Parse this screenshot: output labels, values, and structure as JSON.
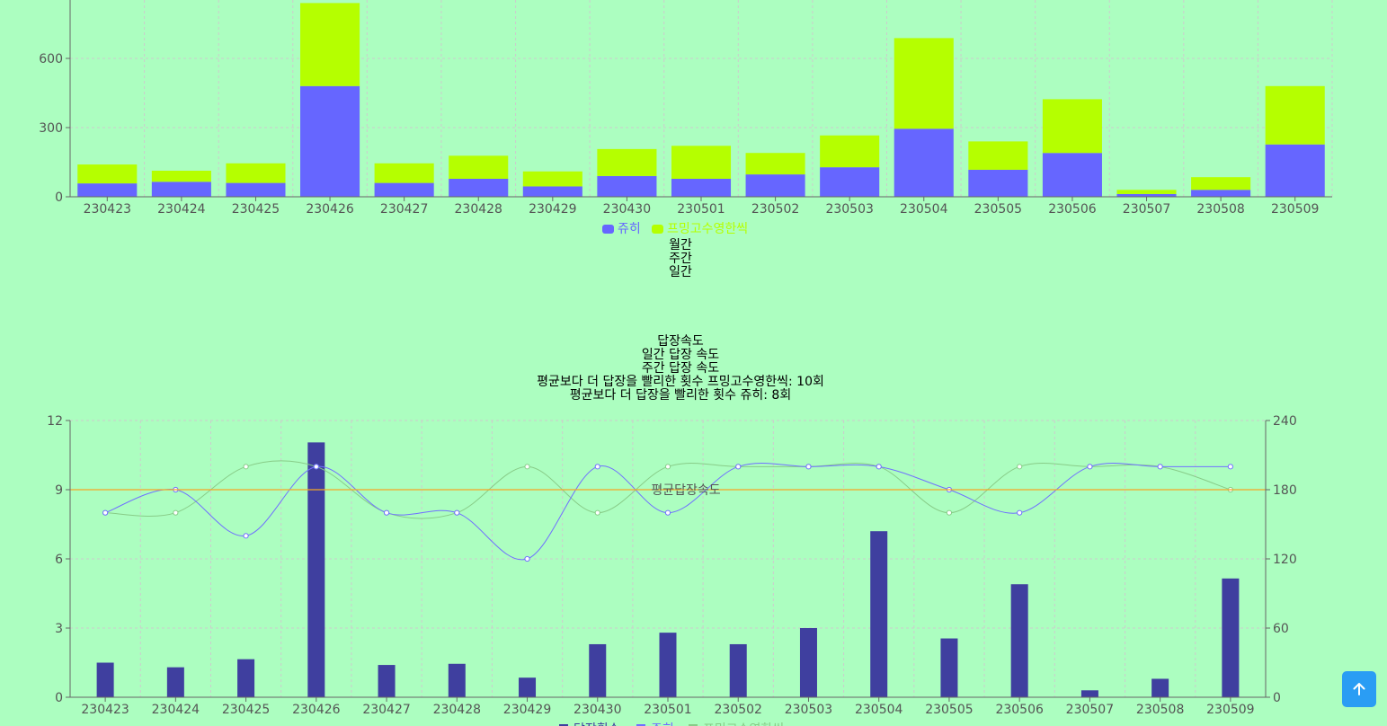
{
  "colors": {
    "page_bg": "#acfec0",
    "juhee": "#6666ff",
    "peuming": "#b5ff00",
    "bar2": "#3f3f9f",
    "line_juhee": "#7070ff",
    "line_peuming": "#88cc88",
    "avg_line": "#f5a623",
    "scroll_btn": "#2a9df4"
  },
  "period_options": [
    "월간",
    "주간",
    "일간"
  ],
  "speed_header": {
    "title": "답장속도",
    "daily": "일간 답장 속도",
    "weekly": "주간 답장 속도",
    "faster_peuming": "평균보다 더 답장을 빨리한 횟수 프밍고수영한씩: 10회",
    "faster_juhee": "평균보다 더 답장을 빨리한 횟수 쥬히: 8회"
  },
  "scroll_top": {
    "icon": "arrow-up-icon"
  },
  "chart_data": [
    {
      "type": "bar",
      "stacked": true,
      "categories": [
        "230423",
        "230424",
        "230425",
        "230426",
        "230427",
        "230428",
        "230429",
        "230430",
        "230501",
        "230502",
        "230503",
        "230504",
        "230505",
        "230506",
        "230507",
        "230508",
        "230509"
      ],
      "yticks": [
        0,
        300,
        600
      ],
      "ylim": [
        0,
        840
      ],
      "grid": true,
      "legend_position": "bottom",
      "series": [
        {
          "name": "쥬히",
          "color": "#6666ff",
          "values": [
            58,
            65,
            60,
            480,
            60,
            78,
            45,
            90,
            78,
            97,
            128,
            295,
            117,
            190,
            12,
            30,
            227
          ]
        },
        {
          "name": "프밍고수영한씩",
          "color": "#b5ff00",
          "values": [
            82,
            48,
            85,
            360,
            85,
            100,
            65,
            117,
            143,
            93,
            138,
            393,
            123,
            233,
            18,
            55,
            253
          ]
        }
      ]
    },
    {
      "type": "bar+line",
      "categories": [
        "230423",
        "230424",
        "230425",
        "230426",
        "230427",
        "230428",
        "230429",
        "230430",
        "230501",
        "230502",
        "230503",
        "230504",
        "230505",
        "230506",
        "230507",
        "230508",
        "230509"
      ],
      "yticks_left": [
        0,
        3,
        6,
        9,
        12
      ],
      "ylim_left": [
        0,
        12
      ],
      "yticks_right": [
        0,
        60,
        120,
        180,
        240
      ],
      "ylim_right": [
        0,
        240
      ],
      "grid": true,
      "legend_position": "bottom",
      "bars": {
        "name": "답장횟수",
        "axis": "right",
        "color": "#3f3f9f",
        "values": [
          30,
          26,
          33,
          221,
          28,
          29,
          17,
          46,
          56,
          46,
          60,
          144,
          51,
          98,
          6,
          16,
          103
        ]
      },
      "lines": [
        {
          "name": "쥬히",
          "axis": "left",
          "color": "#7070ff",
          "values": [
            8,
            9,
            7,
            10,
            8,
            8,
            6,
            10,
            8,
            10,
            10,
            10,
            9,
            8,
            10,
            10,
            10
          ]
        },
        {
          "name": "프밍고수영한씩",
          "axis": "left",
          "color": "#88cc88",
          "values": [
            8,
            8,
            10,
            10,
            8,
            8,
            10,
            8,
            10,
            10,
            10,
            10,
            8,
            10,
            10,
            10,
            9
          ]
        }
      ],
      "reference_line": {
        "label": "평균답장속도",
        "value": 9,
        "axis": "left",
        "color": "#f5a623"
      }
    }
  ]
}
